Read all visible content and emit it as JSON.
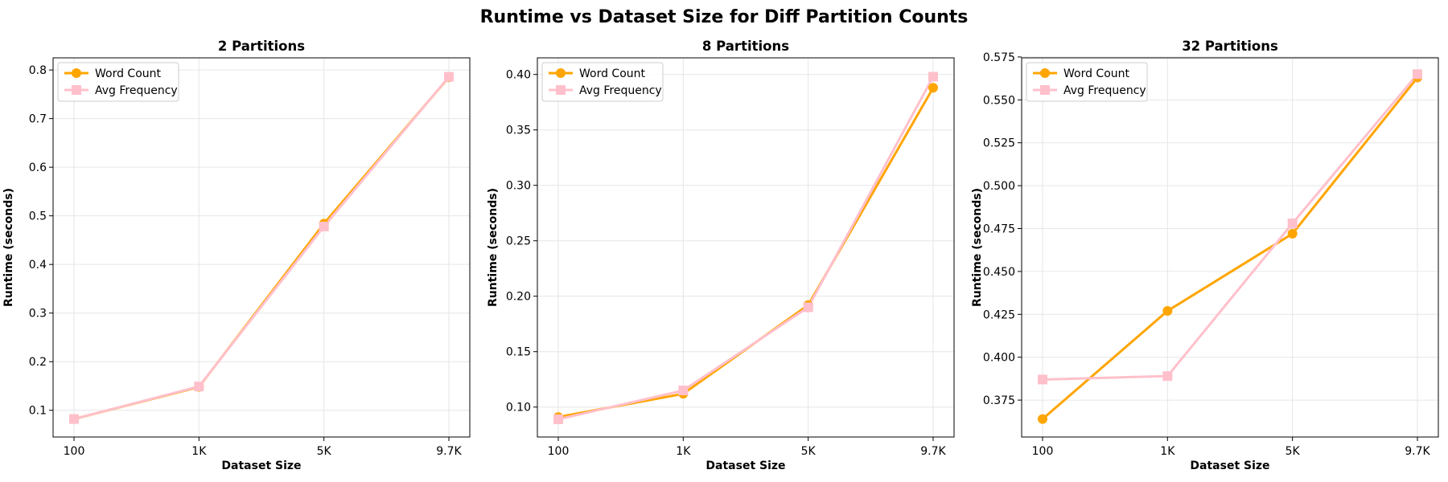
{
  "figure_title": "Runtime vs Dataset Size for Diff Partition Counts",
  "colors": {
    "word_count": "#ffa500",
    "avg_frequency": "#ffc0cb",
    "grid": "#e6e6e6",
    "axes": "#000000"
  },
  "chart_data": [
    {
      "type": "line",
      "title": "2 Partitions",
      "xlabel": "Dataset Size",
      "ylabel": "Runtime (seconds)",
      "categories": [
        "100",
        "1K",
        "5K",
        "9.7K"
      ],
      "ylim": [
        0.045,
        0.825
      ],
      "yticks": [
        0.1,
        0.2,
        0.3,
        0.4,
        0.5,
        0.6,
        0.7,
        0.8
      ],
      "ytick_labels": [
        "0.1",
        "0.2",
        "0.3",
        "0.4",
        "0.5",
        "0.6",
        "0.7",
        "0.8"
      ],
      "grid": true,
      "legend": "top-left",
      "series": [
        {
          "name": "Word Count",
          "marker": "circle",
          "color": "#ffa500",
          "values": [
            0.082,
            0.148,
            0.484,
            0.785
          ]
        },
        {
          "name": "Avg Frequency",
          "marker": "square",
          "color": "#ffc0cb",
          "values": [
            0.082,
            0.149,
            0.478,
            0.786
          ]
        }
      ]
    },
    {
      "type": "line",
      "title": "8 Partitions",
      "xlabel": "Dataset Size",
      "ylabel": "Runtime (seconds)",
      "categories": [
        "100",
        "1K",
        "5K",
        "9.7K"
      ],
      "ylim": [
        0.073,
        0.415
      ],
      "yticks": [
        0.1,
        0.15,
        0.2,
        0.25,
        0.3,
        0.35,
        0.4
      ],
      "ytick_labels": [
        "0.10",
        "0.15",
        "0.20",
        "0.25",
        "0.30",
        "0.35",
        "0.40"
      ],
      "grid": true,
      "legend": "top-left",
      "series": [
        {
          "name": "Word Count",
          "marker": "circle",
          "color": "#ffa500",
          "values": [
            0.091,
            0.112,
            0.192,
            0.388
          ]
        },
        {
          "name": "Avg Frequency",
          "marker": "square",
          "color": "#ffc0cb",
          "values": [
            0.089,
            0.115,
            0.19,
            0.398
          ]
        }
      ]
    },
    {
      "type": "line",
      "title": "32 Partitions",
      "xlabel": "Dataset Size",
      "ylabel": "Runtime (seconds)",
      "categories": [
        "100",
        "1K",
        "5K",
        "9.7K"
      ],
      "ylim": [
        0.3535,
        0.5745
      ],
      "yticks": [
        0.375,
        0.4,
        0.425,
        0.45,
        0.475,
        0.5,
        0.525,
        0.55,
        0.575
      ],
      "ytick_labels": [
        "0.375",
        "0.400",
        "0.425",
        "0.450",
        "0.475",
        "0.500",
        "0.525",
        "0.550",
        "0.575"
      ],
      "grid": true,
      "legend": "top-left",
      "series": [
        {
          "name": "Word Count",
          "marker": "circle",
          "color": "#ffa500",
          "values": [
            0.364,
            0.427,
            0.472,
            0.563
          ]
        },
        {
          "name": "Avg Frequency",
          "marker": "square",
          "color": "#ffc0cb",
          "values": [
            0.387,
            0.389,
            0.478,
            0.565
          ]
        }
      ]
    }
  ]
}
